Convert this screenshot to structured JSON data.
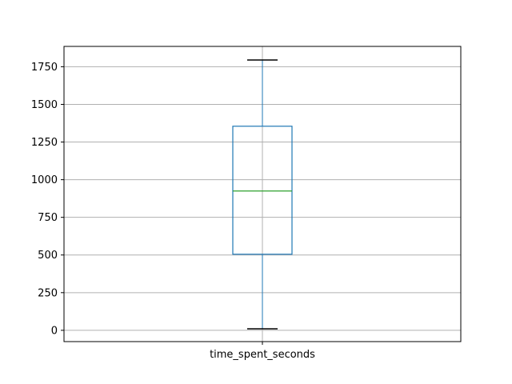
{
  "chart_data": {
    "type": "box",
    "categories": [
      "time_spent_seconds"
    ],
    "series": [
      {
        "whisker_low": 10,
        "q1": 505,
        "median": 925,
        "q3": 1355,
        "whisker_high": 1795
      }
    ],
    "ylim": [
      -75,
      1885
    ],
    "yticks": [
      0,
      250,
      500,
      750,
      1000,
      1250,
      1500,
      1750
    ],
    "grid": true,
    "colors": {
      "box": "#1f77b4",
      "whisker": "#1f77b4",
      "median": "#2ca02c",
      "cap": "#000000",
      "grid": "#b0b0b0",
      "axes": "#000000"
    }
  }
}
